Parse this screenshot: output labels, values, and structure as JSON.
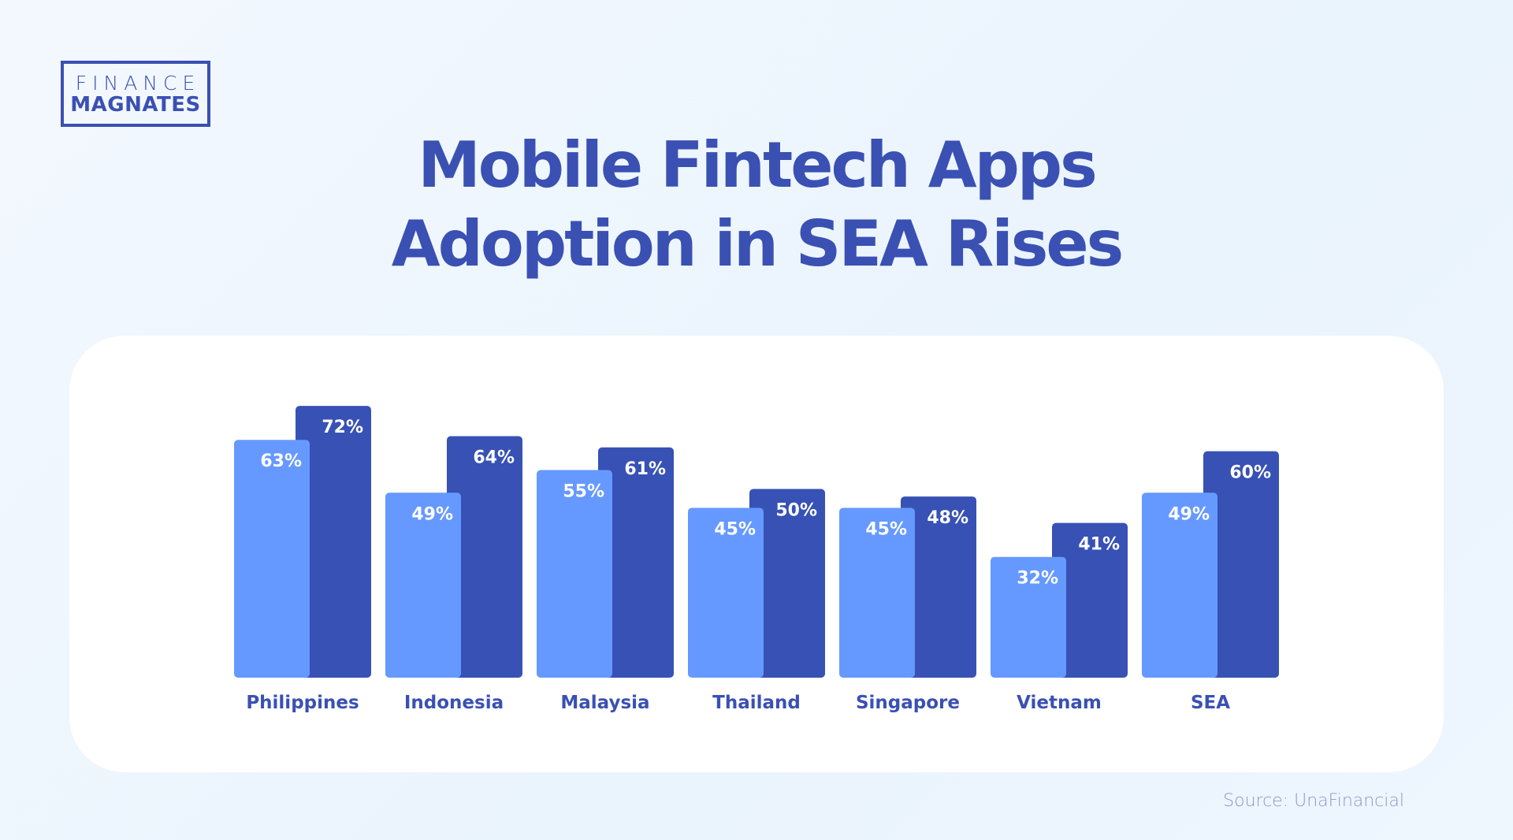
{
  "logo": {
    "line1": "FINANCE",
    "line2": "MAGNATES"
  },
  "title": {
    "line1": "Mobile Fintech Apps",
    "line2": "Adoption in SEA Rises"
  },
  "source": "Source: UnaFinancial",
  "colors": {
    "series_1": "#6699ff",
    "series_2": "#3751b5",
    "text": "#3a50b3",
    "background": "#eef6fe"
  },
  "chart_data": {
    "type": "bar",
    "categories": [
      "Philippines",
      "Indonesia",
      "Malaysia",
      "Thailand",
      "Singapore",
      "Vietnam",
      "SEA"
    ],
    "series": [
      {
        "values": [
          63,
          49,
          55,
          45,
          45,
          32,
          49
        ],
        "labels": [
          "63%",
          "49%",
          "55%",
          "45%",
          "45%",
          "32%",
          "49%"
        ]
      },
      {
        "values": [
          72,
          64,
          61,
          50,
          48,
          41,
          60
        ],
        "labels": [
          "72%",
          "64%",
          "61%",
          "50%",
          "48%",
          "41%",
          "60%"
        ]
      }
    ],
    "ylim": [
      0,
      100
    ],
    "grid": false,
    "legend": "none"
  }
}
